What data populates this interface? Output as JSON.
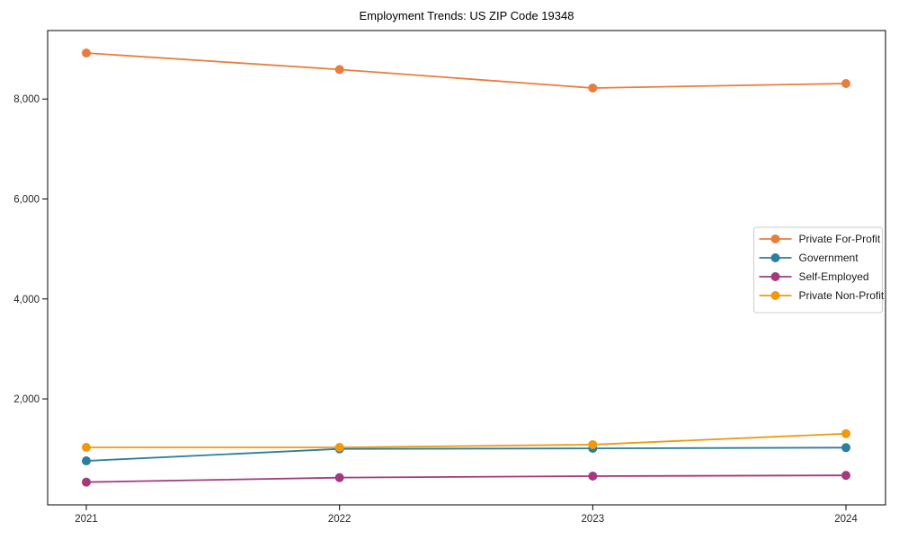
{
  "chart_data": {
    "type": "line",
    "title": "Employment Trends: US ZIP Code 19348",
    "x_categories": [
      "2021",
      "2022",
      "2023",
      "2024"
    ],
    "series": [
      {
        "name": "Private For-Profit",
        "color": "#E87D3E",
        "values": [
          8920,
          8590,
          8220,
          8310
        ]
      },
      {
        "name": "Government",
        "color": "#2B7E9E",
        "values": [
          760,
          1000,
          1010,
          1025
        ]
      },
      {
        "name": "Self-Employed",
        "color": "#A33A7D",
        "values": [
          335,
          425,
          455,
          470
        ]
      },
      {
        "name": "Private Non-Profit",
        "color": "#F0990E",
        "values": [
          1030,
          1030,
          1085,
          1305
        ]
      }
    ],
    "yticks": [
      2000,
      4000,
      6000,
      8000
    ],
    "ytick_labels": [
      "2,000",
      "4,000",
      "6,000",
      "8,000"
    ],
    "ylim": [
      -120,
      9370
    ],
    "xlabel": "",
    "ylabel": "",
    "grid": false,
    "legend_position": "center-right",
    "marker": "circle",
    "axis_color": "#000000",
    "tick_label_color": "#262626",
    "legend_border_color": "#cccccc",
    "background_color": "#ffffff"
  }
}
